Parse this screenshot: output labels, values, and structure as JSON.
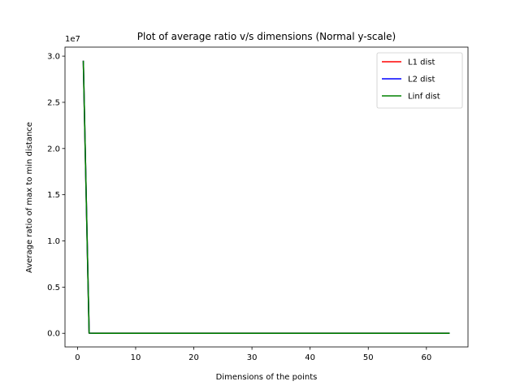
{
  "chart_data": {
    "type": "line",
    "title": "Plot of average ratio v/s dimensions (Normal y-scale)",
    "xlabel": "Dimensions of the points",
    "ylabel": "Average ratio of max to min distance",
    "y_offset_label": "1e7",
    "y_multiplier": 10000000,
    "xlim": [
      -2.15,
      67.15
    ],
    "ylim": [
      -1475000,
      30975000
    ],
    "x_ticks": [
      0,
      10,
      20,
      30,
      40,
      50,
      60
    ],
    "x_tick_labels": [
      "0",
      "10",
      "20",
      "30",
      "40",
      "50",
      "60"
    ],
    "y_ticks": [
      0,
      5000000,
      10000000,
      15000000,
      20000000,
      25000000,
      30000000
    ],
    "y_tick_labels": [
      "0.0",
      "0.5",
      "1.0",
      "1.5",
      "2.0",
      "2.5",
      "3.0"
    ],
    "grid": false,
    "legend_position": "top-right",
    "series": [
      {
        "name": "L1 dist",
        "color": "#ff0000",
        "x": [
          1,
          2,
          3,
          4,
          8,
          16,
          32,
          64
        ],
        "y": [
          29500000,
          20000,
          50,
          20,
          8,
          4,
          3,
          2
        ]
      },
      {
        "name": "L2 dist",
        "color": "#0000ff",
        "x": [
          1,
          2,
          3,
          4,
          8,
          16,
          32,
          64
        ],
        "y": [
          29500000,
          20000,
          50,
          20,
          8,
          4,
          3,
          2
        ]
      },
      {
        "name": "Linf dist",
        "color": "#008000",
        "x": [
          1,
          2,
          3,
          4,
          8,
          16,
          32,
          64
        ],
        "y": [
          29500000,
          20000,
          50,
          20,
          8,
          4,
          3,
          2
        ]
      }
    ]
  }
}
